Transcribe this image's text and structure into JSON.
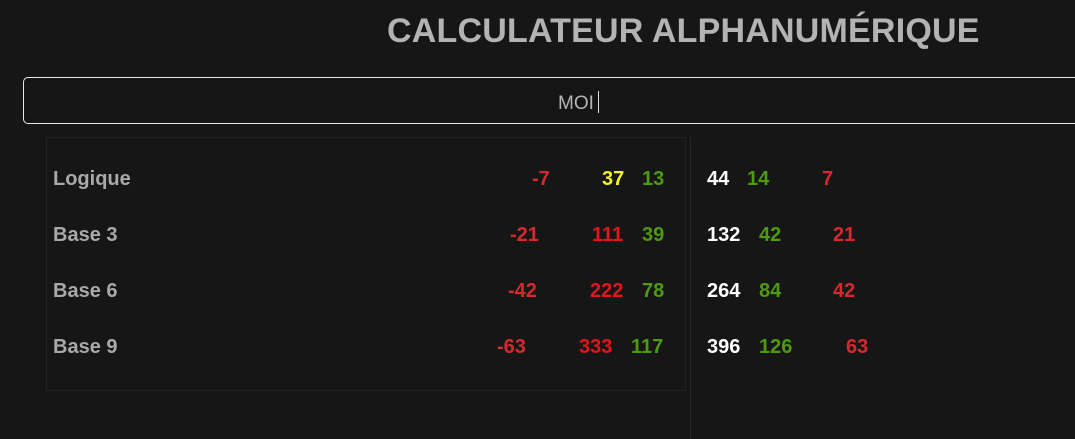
{
  "title": "CALCULATEUR ALPHANUMÉRIQUE",
  "input": {
    "value": "MOI"
  },
  "colors": {
    "negative": "#d42a2f",
    "red": "#e3151d",
    "yellow": "#f4f424",
    "green": "#4e9a12",
    "white": "#ffffff",
    "label": "#a9a9a9"
  },
  "rows": [
    {
      "label": "Logique",
      "left": [
        "-7",
        "37",
        "13"
      ],
      "right": [
        "44",
        "14",
        "7"
      ]
    },
    {
      "label": "Base 3",
      "left": [
        "-21",
        "111",
        "39"
      ],
      "right": [
        "132",
        "42",
        "21"
      ]
    },
    {
      "label": "Base 6",
      "left": [
        "-42",
        "222",
        "78"
      ],
      "right": [
        "264",
        "84",
        "42"
      ]
    },
    {
      "label": "Base 9",
      "left": [
        "-63",
        "333",
        "117"
      ],
      "right": [
        "396",
        "126",
        "63"
      ]
    }
  ]
}
